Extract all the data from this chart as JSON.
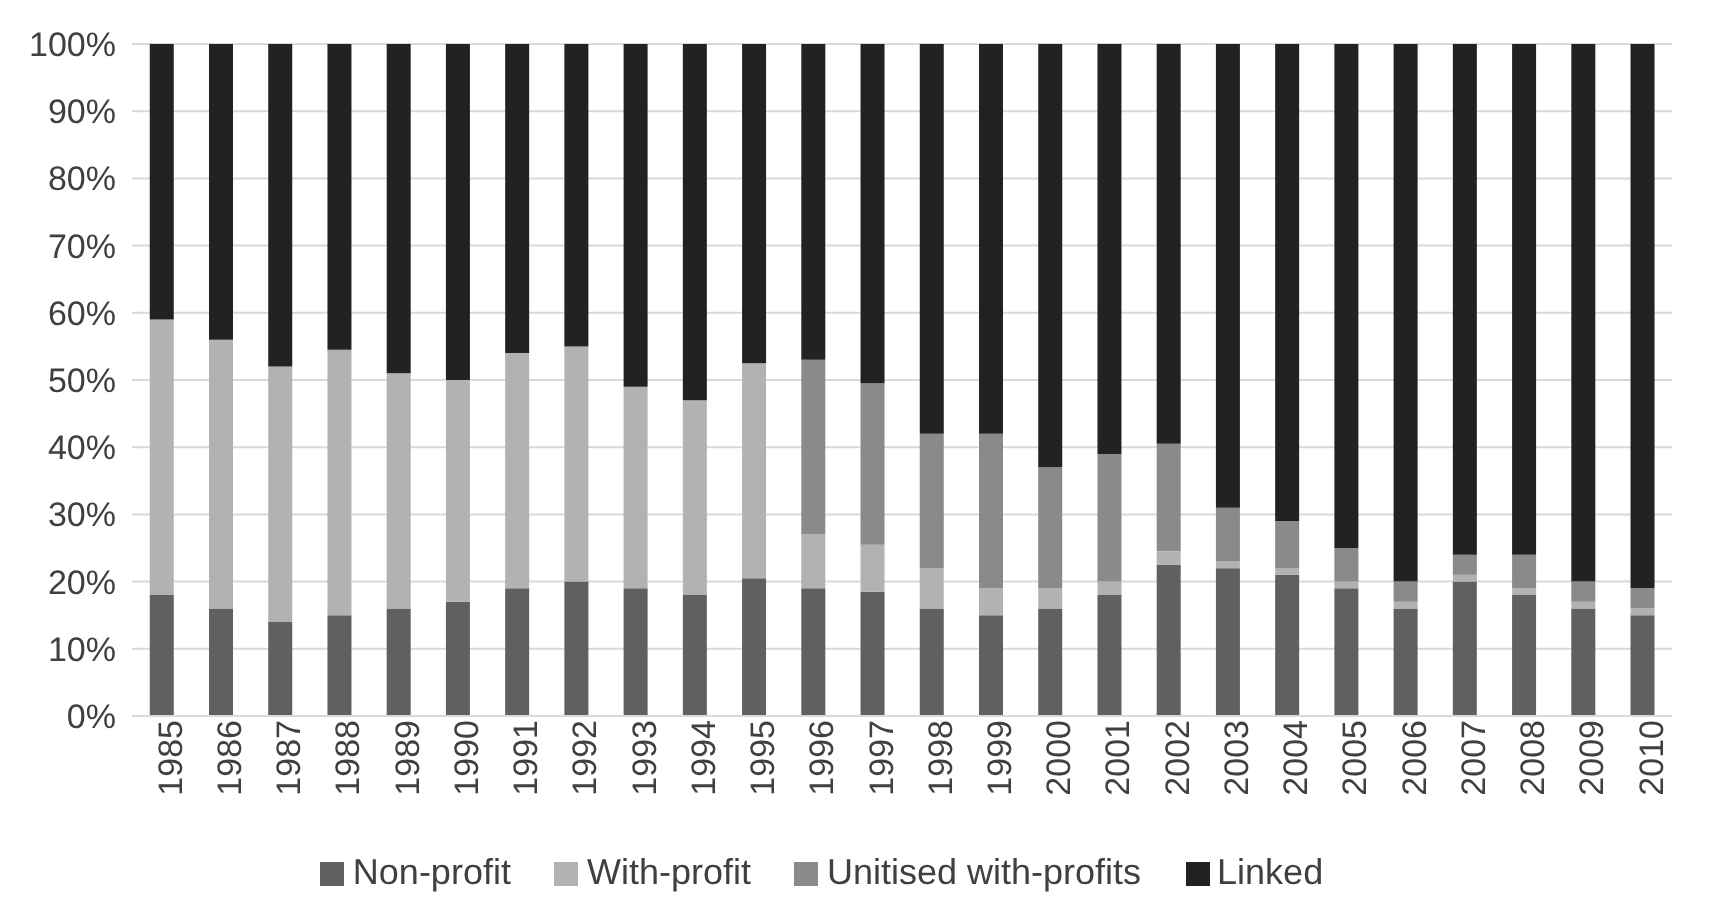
{
  "chart_data": {
    "type": "bar",
    "stacked": true,
    "grid": "y",
    "legend": "bottom",
    "categories": [
      "1985",
      "1986",
      "1987",
      "1988",
      "1989",
      "1990",
      "1991",
      "1992",
      "1993",
      "1994",
      "1995",
      "1996",
      "1997",
      "1998",
      "1999",
      "2000",
      "2001",
      "2002",
      "2003",
      "2004",
      "2005",
      "2006",
      "2007",
      "2008",
      "2009",
      "2010"
    ],
    "ylim": [
      0,
      100
    ],
    "yticks": [
      {
        "value": 0,
        "label": "0%"
      },
      {
        "value": 10,
        "label": "10%"
      },
      {
        "value": 20,
        "label": "20%"
      },
      {
        "value": 30,
        "label": "30%"
      },
      {
        "value": 40,
        "label": "40%"
      },
      {
        "value": 50,
        "label": "50%"
      },
      {
        "value": 60,
        "label": "60%"
      },
      {
        "value": 70,
        "label": "70%"
      },
      {
        "value": 80,
        "label": "80%"
      },
      {
        "value": 90,
        "label": "90%"
      },
      {
        "value": 100,
        "label": "100%"
      }
    ],
    "series": [
      {
        "name": "Non-profit",
        "color": "#606060",
        "values": [
          18,
          16,
          14,
          15,
          16,
          17,
          19,
          20,
          19,
          18,
          20.5,
          19,
          18.5,
          16,
          15,
          16,
          18,
          22.5,
          22,
          21,
          19,
          16,
          20,
          18,
          16,
          15
        ]
      },
      {
        "name": "With-profit",
        "color": "#b2b2b2",
        "values": [
          41,
          40,
          38,
          39.5,
          35,
          33,
          35,
          35,
          30,
          29,
          32,
          8,
          7,
          6,
          4,
          3,
          2,
          2,
          1,
          1,
          1,
          1,
          1,
          1,
          1,
          1
        ]
      },
      {
        "name": "Unitised with-profits",
        "color": "#8a8a8a",
        "values": [
          0,
          0,
          0,
          0,
          0,
          0,
          0,
          0,
          0,
          0,
          0,
          26,
          24,
          20,
          23,
          18,
          19,
          16,
          8,
          7,
          5,
          3,
          3,
          5,
          3,
          3
        ]
      },
      {
        "name": "Linked",
        "color": "#222222",
        "values": [
          41,
          44,
          48,
          45.5,
          49,
          50,
          46,
          45,
          51,
          53,
          47.5,
          47,
          50.5,
          58,
          58,
          63,
          61,
          59.5,
          69,
          71,
          75,
          80,
          76,
          76,
          80,
          81
        ]
      }
    ]
  }
}
